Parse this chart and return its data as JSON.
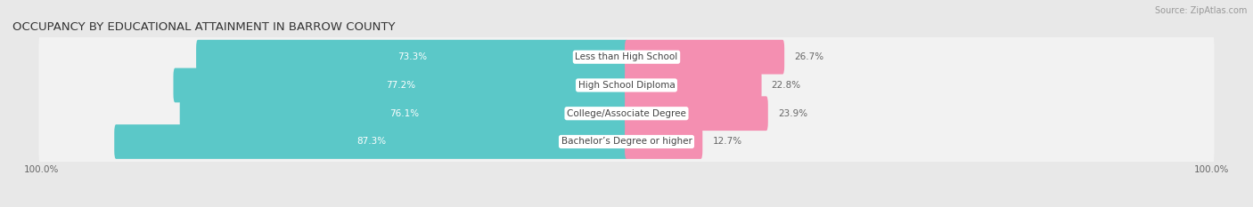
{
  "title": "OCCUPANCY BY EDUCATIONAL ATTAINMENT IN BARROW COUNTY",
  "source": "Source: ZipAtlas.com",
  "categories": [
    "Less than High School",
    "High School Diploma",
    "College/Associate Degree",
    "Bachelor’s Degree or higher"
  ],
  "owner_values": [
    73.3,
    77.2,
    76.1,
    87.3
  ],
  "renter_values": [
    26.7,
    22.8,
    23.9,
    12.7
  ],
  "owner_color": "#5bc8c8",
  "renter_color": "#f48fb1",
  "background_color": "#e8e8e8",
  "row_bg_color": "#f2f2f2",
  "title_fontsize": 9.5,
  "label_fontsize": 7.5,
  "pct_fontsize": 7.5,
  "tick_fontsize": 7.5,
  "source_fontsize": 7.0,
  "legend_fontsize": 7.5
}
